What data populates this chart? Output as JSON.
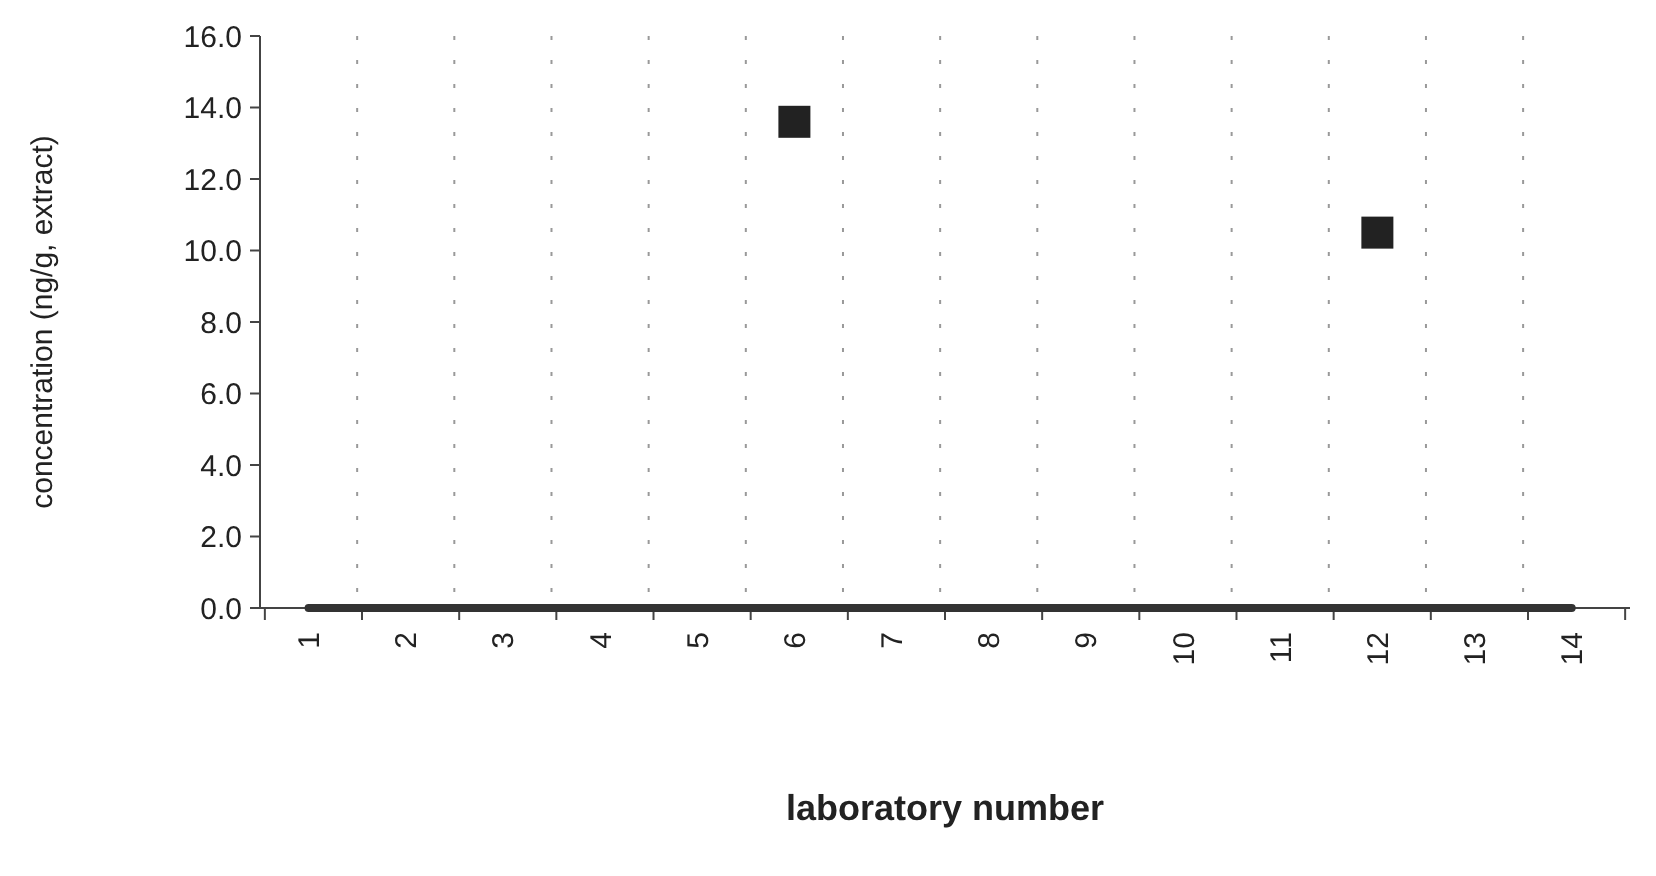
{
  "chart_data": {
    "type": "scatter",
    "xlabel": "laboratory number",
    "ylabel": "concentration (ng/g, extract)",
    "categories": [
      "1",
      "2",
      "3",
      "4",
      "5",
      "6",
      "7",
      "8",
      "9",
      "10",
      "11",
      "12",
      "13",
      "14"
    ],
    "series": [
      {
        "type": "line",
        "color": "#333333",
        "values": [
          0,
          0,
          0,
          0,
          0,
          0,
          0,
          0,
          0,
          0,
          0,
          0,
          0,
          0
        ]
      },
      {
        "color": "#222222",
        "marker": "square",
        "values": [
          null,
          null,
          null,
          null,
          null,
          13.6,
          null,
          null,
          null,
          null,
          null,
          10.5,
          null,
          null
        ]
      }
    ],
    "ylim": [
      0,
      16
    ],
    "yticks": [
      {
        "value": 0,
        "label": "0.0"
      },
      {
        "value": 2,
        "label": "2.0"
      },
      {
        "value": 4,
        "label": "4.0"
      },
      {
        "value": 6,
        "label": "6.0"
      },
      {
        "value": 8,
        "label": "8.0"
      },
      {
        "value": 10,
        "label": "10.0"
      },
      {
        "value": 12,
        "label": "12.0"
      },
      {
        "value": 14,
        "label": "14.0"
      },
      {
        "value": 16,
        "label": "16.0"
      }
    ],
    "grid": "x"
  }
}
